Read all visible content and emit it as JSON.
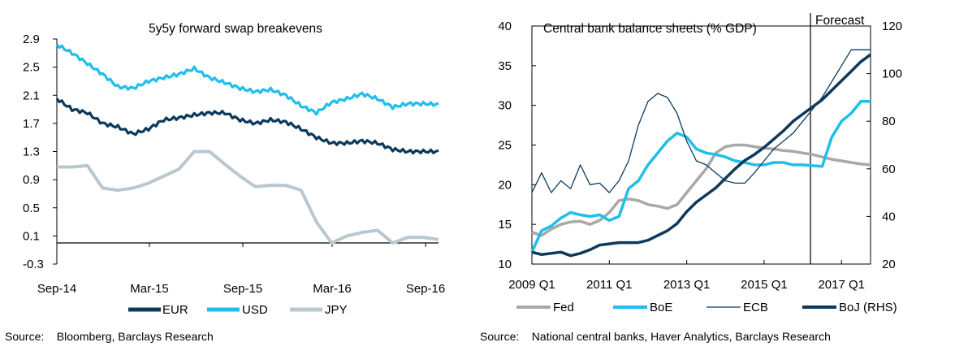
{
  "chart_data": [
    {
      "type": "line",
      "title": "5y5y forward swap breakevens",
      "xlabel": "",
      "ylabel": "",
      "x_tick_labels": [
        "Sep-14",
        "Mar-15",
        "Sep-15",
        "Mar-16",
        "Sep-16"
      ],
      "y_tick_labels": [
        "2.9",
        "2.5",
        "2.1",
        "1.7",
        "1.3",
        "0.9",
        "0.5",
        "0.1",
        "-0.3"
      ],
      "ylim": [
        -0.3,
        2.9
      ],
      "x": [
        "Sep-14",
        "Oct-14",
        "Nov-14",
        "Dec-14",
        "Jan-15",
        "Feb-15",
        "Mar-15",
        "Apr-15",
        "May-15",
        "Jun-15",
        "Jul-15",
        "Aug-15",
        "Sep-15",
        "Oct-15",
        "Nov-15",
        "Dec-15",
        "Jan-16",
        "Feb-16",
        "Mar-16",
        "Apr-16",
        "May-16",
        "Jun-16",
        "Jul-16",
        "Aug-16",
        "Sep-16",
        "Oct-16"
      ],
      "series": [
        {
          "name": "EUR",
          "color": "#0d3a5c",
          "values": [
            2.05,
            1.9,
            1.85,
            1.7,
            1.65,
            1.55,
            1.62,
            1.75,
            1.78,
            1.82,
            1.85,
            1.85,
            1.75,
            1.7,
            1.75,
            1.72,
            1.62,
            1.5,
            1.42,
            1.42,
            1.45,
            1.42,
            1.33,
            1.3,
            1.3,
            1.3
          ]
        },
        {
          "name": "USD",
          "color": "#1fbfea",
          "values": [
            2.82,
            2.7,
            2.55,
            2.4,
            2.22,
            2.2,
            2.3,
            2.35,
            2.4,
            2.48,
            2.35,
            2.28,
            2.2,
            2.15,
            2.18,
            2.1,
            1.95,
            1.85,
            2.0,
            2.05,
            2.12,
            2.05,
            1.93,
            1.98,
            1.98,
            1.97
          ]
        },
        {
          "name": "JPY",
          "color": "#b9c7cf",
          "values": [
            1.08,
            1.08,
            1.1,
            0.78,
            0.75,
            0.78,
            0.85,
            0.95,
            1.05,
            1.3,
            1.3,
            1.12,
            0.95,
            0.8,
            0.82,
            0.82,
            0.75,
            0.3,
            0.0,
            0.1,
            0.15,
            0.18,
            0.0,
            0.08,
            0.08,
            0.05
          ]
        }
      ],
      "legend_position": "bottom",
      "source": "Source:    Bloomberg, Barclays Research"
    },
    {
      "type": "line",
      "title": "Central bank balance sheets (% GDP)",
      "annotation": "Forecast",
      "x_tick_labels": [
        "2009 Q1",
        "2011 Q1",
        "2013 Q1",
        "2015 Q1",
        "2017 Q1"
      ],
      "y_left_tick_labels": [
        "40",
        "35",
        "30",
        "25",
        "20",
        "15",
        "10"
      ],
      "y_right_tick_labels": [
        "120",
        "100",
        "80",
        "60",
        "40",
        "20"
      ],
      "ylim_left": [
        10,
        40
      ],
      "ylim_right": [
        20,
        120
      ],
      "x": [
        "2009 Q1",
        "2009 Q2",
        "2009 Q3",
        "2009 Q4",
        "2010 Q1",
        "2010 Q2",
        "2010 Q3",
        "2010 Q4",
        "2011 Q1",
        "2011 Q2",
        "2011 Q3",
        "2011 Q4",
        "2012 Q1",
        "2012 Q2",
        "2012 Q3",
        "2012 Q4",
        "2013 Q1",
        "2013 Q2",
        "2013 Q3",
        "2013 Q4",
        "2014 Q1",
        "2014 Q2",
        "2014 Q3",
        "2014 Q4",
        "2015 Q1",
        "2015 Q2",
        "2015 Q3",
        "2015 Q4",
        "2016 Q1",
        "2016 Q2",
        "2016 Q3",
        "2016 Q4",
        "2017 Q1",
        "2017 Q2",
        "2017 Q3",
        "2017 Q4"
      ],
      "forecast_from": "2016 Q3",
      "series": [
        {
          "name": "Fed",
          "axis": "left",
          "color": "#a8a8a8",
          "values": [
            14.0,
            13.6,
            14.4,
            15.0,
            15.3,
            15.4,
            15.0,
            15.5,
            16.5,
            18.0,
            18.2,
            18.0,
            17.5,
            17.3,
            17.0,
            17.5,
            19.0,
            20.5,
            22.0,
            24.0,
            24.8,
            25.0,
            25.0,
            24.8,
            24.6,
            24.5,
            24.3,
            24.2,
            24.0,
            23.8,
            23.5,
            23.2,
            23.0,
            22.8,
            22.6,
            22.5
          ]
        },
        {
          "name": "BoE",
          "axis": "left",
          "color": "#1fbfea",
          "values": [
            11.5,
            14.2,
            14.8,
            15.8,
            16.5,
            16.2,
            16.0,
            16.2,
            15.5,
            16.0,
            19.5,
            20.5,
            22.5,
            24.0,
            25.5,
            26.5,
            26.0,
            24.5,
            24.0,
            23.8,
            23.5,
            23.0,
            22.8,
            22.5,
            22.5,
            22.8,
            22.8,
            22.5,
            22.5,
            22.4,
            22.3,
            26.0,
            28.0,
            29.0,
            30.5,
            30.5
          ]
        },
        {
          "name": "ECB",
          "axis": "left",
          "color": "#0d3a5c",
          "thin": true,
          "values": [
            19.0,
            21.5,
            19.0,
            20.5,
            19.5,
            22.5,
            20.0,
            20.2,
            19.0,
            20.5,
            23.0,
            27.5,
            30.5,
            31.5,
            31.0,
            29.0,
            25.5,
            23.0,
            22.5,
            21.5,
            20.5,
            20.2,
            20.2,
            21.5,
            23.0,
            24.5,
            25.5,
            26.5,
            28.0,
            29.5,
            31.0,
            33.0,
            35.0,
            37.0,
            37.0,
            37.0
          ]
        },
        {
          "name": "BoJ (RHS)",
          "axis": "right",
          "color": "#0d3a5c",
          "values": [
            25.0,
            24.0,
            24.5,
            25.0,
            23.5,
            24.5,
            26.0,
            28.0,
            28.5,
            29.0,
            29.0,
            29.0,
            30.0,
            32.0,
            34.0,
            37.0,
            42.0,
            46.0,
            49.0,
            52.0,
            56.0,
            60.0,
            63.5,
            66.0,
            69.0,
            72.5,
            76.0,
            80.0,
            83.0,
            86.0,
            89.0,
            93.0,
            97.0,
            101.0,
            105.0,
            108.0
          ]
        }
      ],
      "legend_position": "bottom",
      "source": "Source:    National central banks, Haver Analytics, Barclays Research"
    }
  ]
}
